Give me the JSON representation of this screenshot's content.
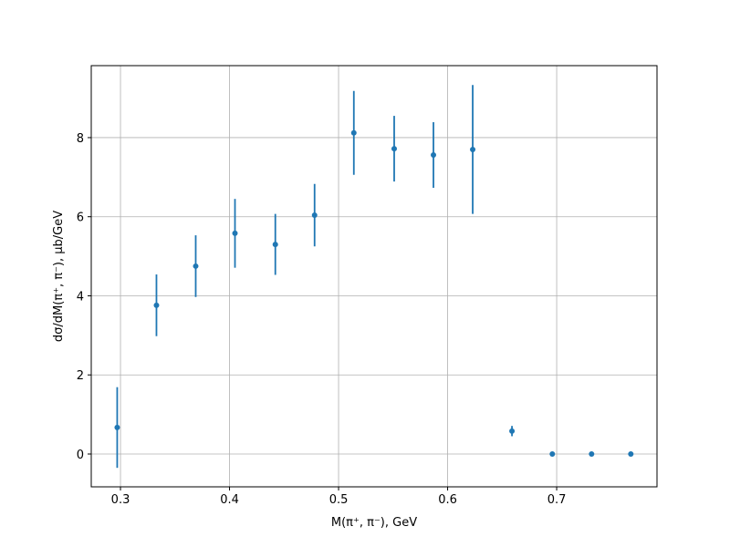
{
  "chart_data": {
    "type": "errorbar",
    "x_label": "M(π⁺, π⁻), GeV",
    "y_label": "dσ/dM(π⁺, π⁻), μb/GeV",
    "x": [
      0.297,
      0.333,
      0.369,
      0.405,
      0.442,
      0.478,
      0.514,
      0.551,
      0.587,
      0.623,
      0.659,
      0.696,
      0.732,
      0.768
    ],
    "values": [
      0.67,
      3.76,
      4.75,
      5.58,
      5.3,
      6.04,
      8.12,
      7.72,
      7.56,
      7.7,
      0.58,
      0,
      0,
      0
    ],
    "errors": [
      1.02,
      0.78,
      0.78,
      0.87,
      0.77,
      0.79,
      1.06,
      0.83,
      0.83,
      1.63,
      0.13,
      0,
      0,
      0
    ],
    "color": "#1f77b4",
    "xlim": [
      0.2732,
      0.792
    ],
    "ylim": [
      -0.83,
      9.82
    ],
    "xticks": [
      0.3,
      0.4,
      0.5,
      0.6,
      0.7
    ],
    "yticks": [
      0,
      2,
      4,
      6,
      8
    ],
    "grid": true
  }
}
